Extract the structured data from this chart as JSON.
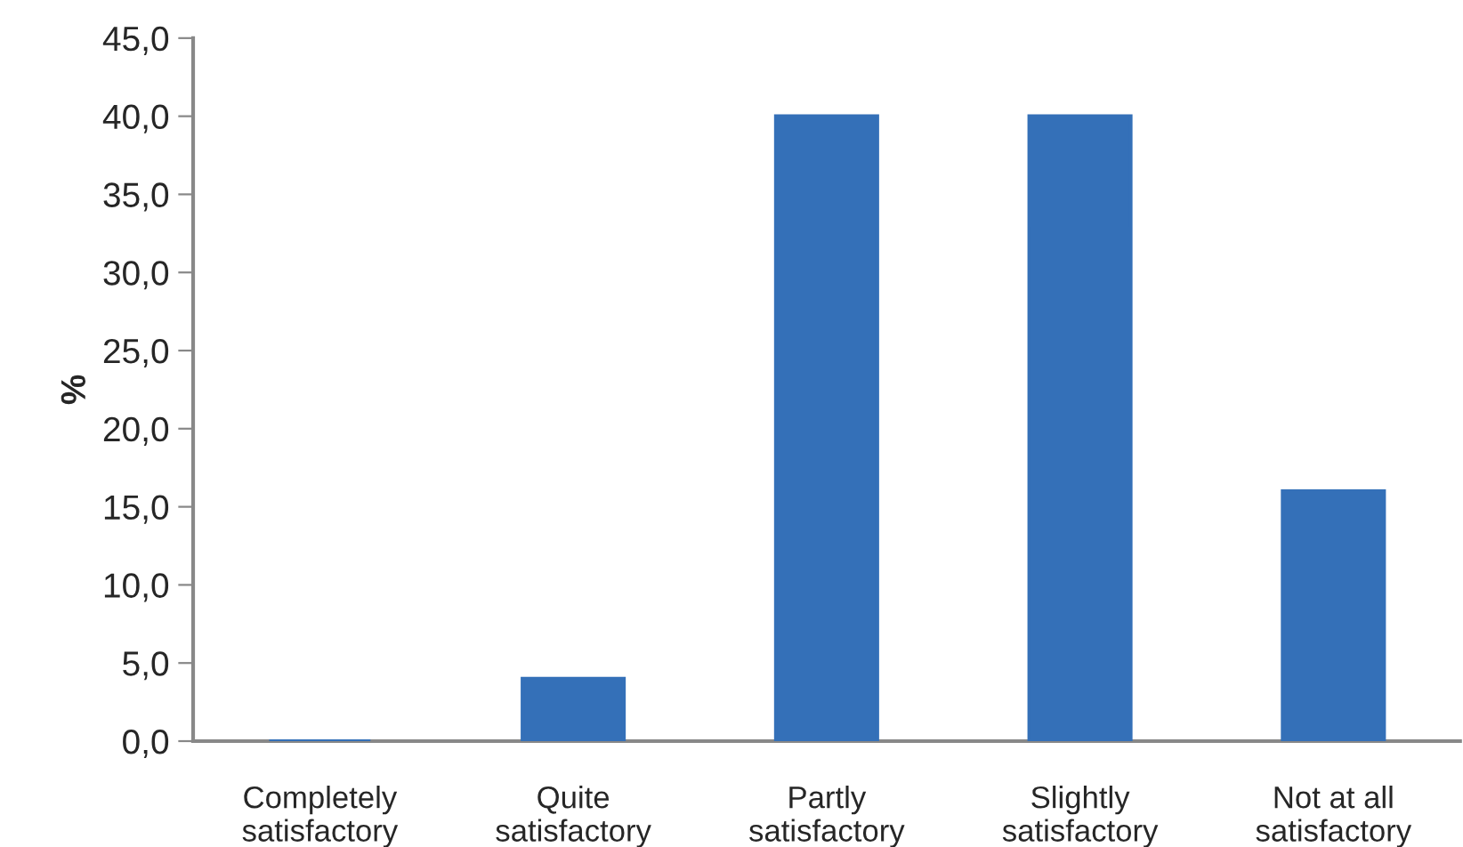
{
  "chart_data": {
    "type": "bar",
    "ylabel": "%",
    "categories": [
      "Completely\nsatisfactory",
      "Quite\nsatisfactory",
      "Partly\nsatisfactory",
      "Slightly\nsatisfactory",
      "Not at all\nsatisfactory"
    ],
    "values": [
      0,
      4,
      40,
      40,
      16
    ],
    "color": "#3470b8",
    "ylim": [
      0,
      45
    ],
    "yticks": [
      {
        "value": 0,
        "label": "0,0"
      },
      {
        "value": 5,
        "label": "5,0"
      },
      {
        "value": 10,
        "label": "10,0"
      },
      {
        "value": 15,
        "label": "15,0"
      },
      {
        "value": 20,
        "label": "20,0"
      },
      {
        "value": 25,
        "label": "25,0"
      },
      {
        "value": 30,
        "label": "30,0"
      },
      {
        "value": 35,
        "label": "35,0"
      },
      {
        "value": 40,
        "label": "40,0"
      },
      {
        "value": 45,
        "label": "45,0"
      }
    ],
    "grid": false,
    "legend": false
  }
}
